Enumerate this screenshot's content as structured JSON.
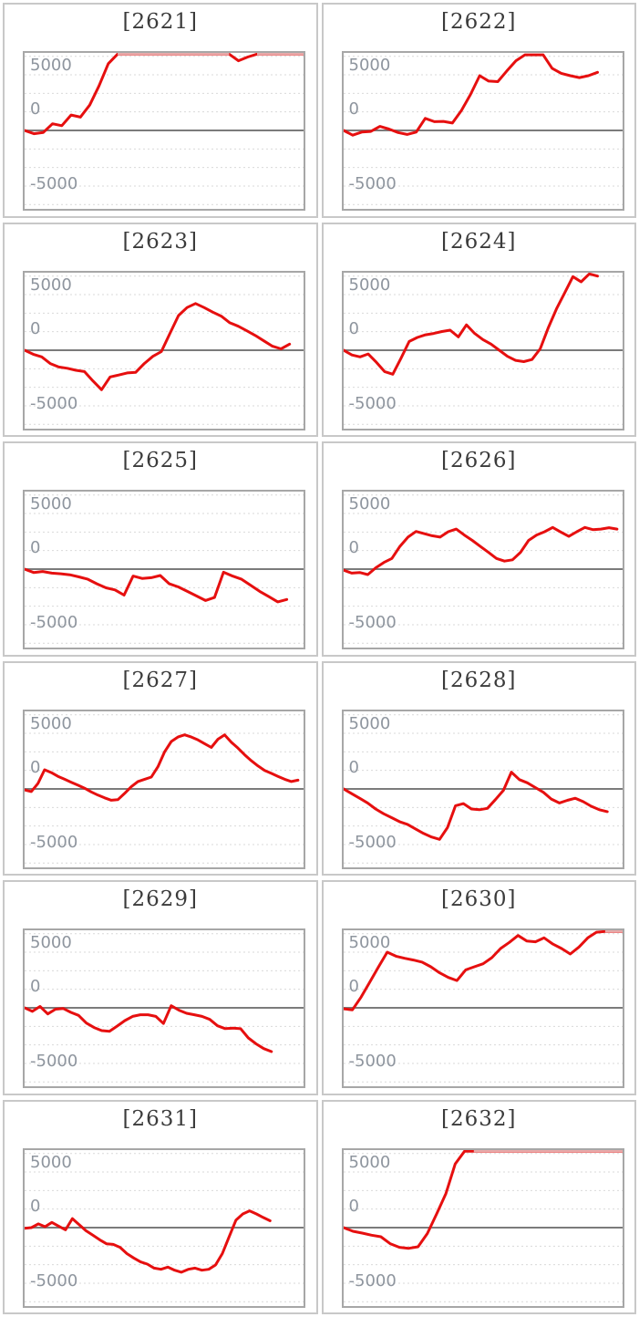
{
  "page": {
    "background": "#ffffff"
  },
  "colors": {
    "line_red": "#e60f0f",
    "line_clipped_pink": "#e8a9a9",
    "zero_line": "#7b7b7b",
    "gridline": "#d9d9d9",
    "panel_border": "#c8c8c8",
    "plot_border": "#a7a7a7",
    "axis_label": "#8e959e",
    "title_text": "#3b3b3b"
  },
  "axis": {
    "y_tick_labels": [
      "5000",
      "0",
      "-5000"
    ],
    "y_label_values": [
      5000,
      0,
      -5000
    ],
    "grid_values": [
      5000,
      3750,
      2500,
      1250,
      -1250,
      -2500,
      -3750,
      -5000
    ],
    "ymax": 5230,
    "ymin": -5290,
    "grid_step": 1250,
    "zero_value": 0,
    "legend": "none",
    "grid": "dotted-horizontal"
  },
  "chart_data": [
    {
      "type": "line",
      "title": "[2621]",
      "ylim": [
        -5290,
        5230
      ],
      "x_span_frac": 1.0,
      "values": [
        0,
        -220,
        -140,
        450,
        320,
        1040,
        900,
        1710,
        3000,
        4500,
        5400,
        5400,
        5400,
        5400,
        5400,
        5400,
        5400,
        5400,
        5400,
        5400,
        5400,
        5400,
        5400,
        4700,
        4950,
        5400,
        5400,
        5400,
        5400,
        5400,
        5400
      ]
    },
    {
      "type": "line",
      "title": "[2622]",
      "ylim": [
        -5290,
        5230
      ],
      "x_span_frac": 0.91,
      "values": [
        0,
        -320,
        -110,
        -70,
        270,
        90,
        -140,
        -270,
        -110,
        810,
        590,
        610,
        500,
        1350,
        2430,
        3690,
        3330,
        3290,
        4010,
        4700,
        5100,
        5100,
        5100,
        4190,
        3850,
        3690,
        3560,
        3690,
        3920
      ]
    },
    {
      "type": "line",
      "title": "[2623]",
      "ylim": [
        -5290,
        5230
      ],
      "x_span_frac": 0.95,
      "values": [
        0,
        -270,
        -450,
        -900,
        -1130,
        -1220,
        -1350,
        -1440,
        -2070,
        -2660,
        -1800,
        -1670,
        -1530,
        -1490,
        -900,
        -410,
        -90,
        1130,
        2340,
        2880,
        3150,
        2880,
        2570,
        2300,
        1850,
        1620,
        1310,
        990,
        630,
        270,
        90,
        410
      ]
    },
    {
      "type": "line",
      "title": "[2624]",
      "ylim": [
        -5290,
        5230
      ],
      "x_span_frac": 0.91,
      "values": [
        0,
        -320,
        -450,
        -250,
        -810,
        -1440,
        -1620,
        -540,
        590,
        860,
        1040,
        1130,
        1260,
        1350,
        900,
        1710,
        1130,
        720,
        410,
        0,
        -410,
        -680,
        -770,
        -630,
        90,
        1530,
        2790,
        3870,
        4960,
        4610,
        5180,
        5000
      ]
    },
    {
      "type": "line",
      "title": "[2625]",
      "ylim": [
        -5290,
        5230
      ],
      "x_span_frac": 0.94,
      "values": [
        0,
        -225,
        -160,
        -270,
        -315,
        -380,
        -520,
        -680,
        -990,
        -1260,
        -1400,
        -1755,
        -470,
        -630,
        -580,
        -430,
        -990,
        -1200,
        -1500,
        -1810,
        -2115,
        -1910,
        -210,
        -470,
        -680,
        -1090,
        -1500,
        -1850,
        -2210,
        -2050
      ]
    },
    {
      "type": "line",
      "title": "[2626]",
      "ylim": [
        -5290,
        5230
      ],
      "x_span_frac": 0.98,
      "values": [
        -65,
        -270,
        -225,
        -370,
        90,
        450,
        720,
        1530,
        2160,
        2540,
        2390,
        2250,
        2160,
        2520,
        2700,
        2300,
        1940,
        1530,
        1130,
        720,
        540,
        630,
        1130,
        1940,
        2300,
        2520,
        2810,
        2500,
        2210,
        2520,
        2810,
        2660,
        2700,
        2790,
        2700
      ]
    },
    {
      "type": "line",
      "title": "[2627]",
      "ylim": [
        -5290,
        5230
      ],
      "x_span_frac": 0.98,
      "values": [
        -65,
        -180,
        360,
        1290,
        1100,
        850,
        650,
        450,
        250,
        50,
        -200,
        -420,
        -600,
        -760,
        -720,
        -300,
        150,
        500,
        650,
        800,
        1500,
        2500,
        3200,
        3500,
        3650,
        3500,
        3300,
        3050,
        2800,
        3350,
        3650,
        3150,
        2750,
        2300,
        1900,
        1550,
        1250,
        1050,
        850,
        650,
        500,
        590
      ]
    },
    {
      "type": "line",
      "title": "[2628]",
      "ylim": [
        -5290,
        5230
      ],
      "x_span_frac": 0.945,
      "values": [
        0,
        -320,
        -630,
        -950,
        -1350,
        -1670,
        -1940,
        -2210,
        -2390,
        -2700,
        -3000,
        -3240,
        -3400,
        -2610,
        -1130,
        -990,
        -1350,
        -1400,
        -1310,
        -720,
        -90,
        1130,
        630,
        410,
        90,
        -230,
        -680,
        -950,
        -770,
        -630,
        -860,
        -1170,
        -1400,
        -1530
      ]
    },
    {
      "type": "line",
      "title": "[2629]",
      "ylim": [
        -5290,
        5230
      ],
      "x_span_frac": 0.885,
      "values": [
        0,
        -240,
        90,
        -410,
        -90,
        -45,
        -310,
        -510,
        -1030,
        -1330,
        -1540,
        -1580,
        -1230,
        -860,
        -580,
        -470,
        -470,
        -580,
        -1060,
        140,
        -160,
        -370,
        -470,
        -580,
        -780,
        -1210,
        -1400,
        -1370,
        -1410,
        -2030,
        -2430,
        -2750,
        -2950
      ]
    },
    {
      "type": "line",
      "title": "[2630]",
      "ylim": [
        -5290,
        5230
      ],
      "x_span_frac": 1.0,
      "values": [
        -65,
        -135,
        720,
        1740,
        2770,
        3750,
        3480,
        3340,
        3220,
        3080,
        2770,
        2360,
        2050,
        1840,
        2560,
        2770,
        2970,
        3380,
        4000,
        4410,
        4880,
        4510,
        4450,
        4715,
        4300,
        4000,
        3630,
        4100,
        4715,
        5100,
        5400,
        5400,
        5400
      ]
    },
    {
      "type": "line",
      "title": "[2631]",
      "ylim": [
        -5290,
        5230
      ],
      "x_span_frac": 0.88,
      "values": [
        -40,
        0,
        250,
        60,
        350,
        100,
        -150,
        610,
        200,
        -210,
        -510,
        -820,
        -1090,
        -1130,
        -1330,
        -1750,
        -2050,
        -2310,
        -2460,
        -2730,
        -2810,
        -2660,
        -2870,
        -3010,
        -2810,
        -2730,
        -2870,
        -2810,
        -2520,
        -1750,
        -610,
        510,
        920,
        1130,
        920,
        680,
        460
      ]
    },
    {
      "type": "line",
      "title": "[2632]",
      "ylim": [
        -5290,
        5230
      ],
      "x_span_frac": 1.0,
      "values": [
        0,
        -245,
        -370,
        -510,
        -615,
        -1085,
        -1330,
        -1395,
        -1290,
        -400,
        920,
        2300,
        4300,
        5185,
        5400,
        5400,
        5400,
        5400,
        5400,
        5400,
        5400,
        5400,
        5400,
        5400,
        5400,
        5400,
        5400,
        5400,
        5400,
        5400,
        5400
      ]
    }
  ]
}
